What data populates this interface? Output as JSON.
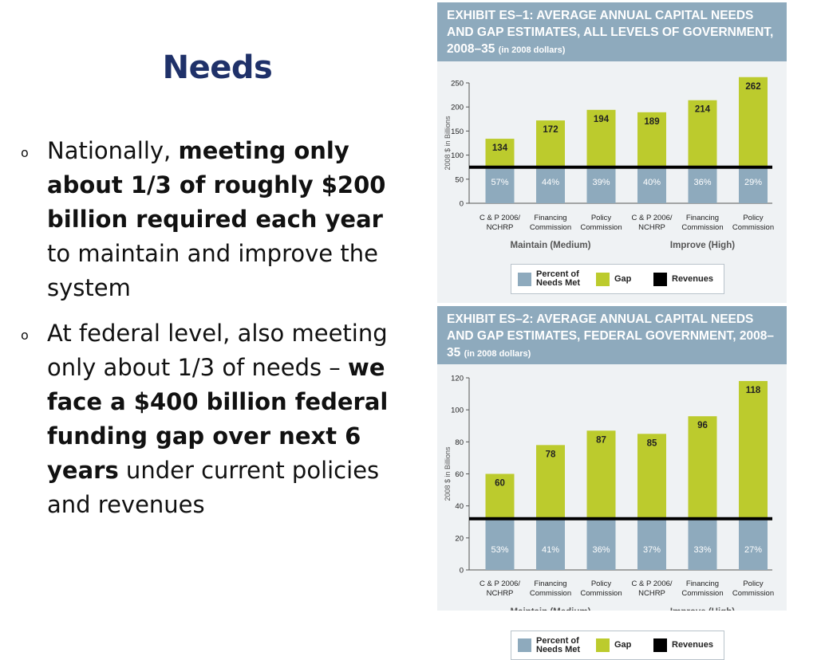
{
  "slide": {
    "title": "Needs",
    "bullet_marker": "o",
    "bullets": [
      {
        "pre": "Nationally, ",
        "bold": "meeting only about 1/3 of roughly $200 billion required each year",
        "post": " to maintain and improve the system"
      },
      {
        "pre": "At federal level, also meeting only about 1/3 of needs – ",
        "bold": "we face a $400 billion federal funding gap over next 6 years",
        "post": " under current policies and revenues"
      }
    ]
  },
  "colors": {
    "header_bg": "#8eaabd",
    "panel_bg": "#eff2f4",
    "gap": "#bccb2d",
    "percent": "#8eaabd",
    "revenues": "#000000",
    "title": "#1f3169"
  },
  "chart_data": [
    {
      "type": "bar",
      "title": "EXHIBIT ES–1: AVERAGE ANNUAL CAPITAL NEEDS AND GAP ESTIMATES, ALL LEVELS OF GOVERNMENT, 2008–35",
      "subtitle": "(in 2008 dollars)",
      "ylabel": "2008 $ in Billions",
      "ylim": [
        0,
        250
      ],
      "yticks": [
        0,
        50,
        100,
        150,
        200,
        250
      ],
      "categories": [
        "C & P 2006/\nNCHRP",
        "Financing\nCommission",
        "Policy\nCommission",
        "C & P 2006/\nNCHRP",
        "Financing\nCommission",
        "Policy\nCommission"
      ],
      "groups": [
        "Maintain (Medium)",
        "Improve (High)"
      ],
      "values": [
        134,
        172,
        194,
        189,
        214,
        262
      ],
      "percent_labels": [
        "57%",
        "44%",
        "39%",
        "40%",
        "36%",
        "29%"
      ],
      "revenues": 75,
      "legend": [
        "Percent of\nNeeds Met",
        "Gap",
        "Revenues"
      ]
    },
    {
      "type": "bar",
      "title": "EXHIBIT ES–2: AVERAGE ANNUAL CAPITAL NEEDS AND GAP ESTIMATES, FEDERAL GOVERNMENT, 2008–35",
      "subtitle": "(in 2008 dollars)",
      "ylabel": "2008 $ in Billions",
      "ylim": [
        0,
        120
      ],
      "yticks": [
        0,
        20,
        40,
        60,
        80,
        100,
        120
      ],
      "categories": [
        "C & P 2006/\nNCHRP",
        "Financing\nCommission",
        "Policy\nCommission",
        "C & P 2006/\nNCHRP",
        "Financing\nCommission",
        "Policy\nCommission"
      ],
      "groups": [
        "Maintain (Medium)",
        "Improve (High)"
      ],
      "values": [
        60,
        78,
        87,
        85,
        96,
        118
      ],
      "percent_labels": [
        "53%",
        "41%",
        "36%",
        "37%",
        "33%",
        "27%"
      ],
      "revenues": 32,
      "legend": [
        "Percent of\nNeeds Met",
        "Gap",
        "Revenues"
      ]
    }
  ]
}
